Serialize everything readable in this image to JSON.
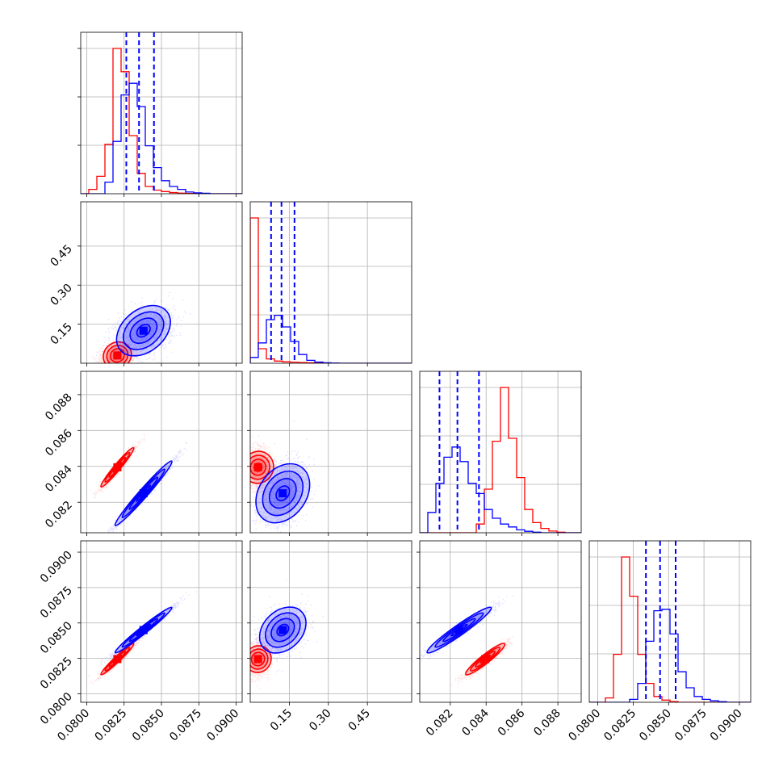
{
  "colors": {
    "series_red": "#ff0000",
    "series_blue": "#0000ff",
    "grid": "#b0b0b0",
    "axes": "#000000"
  },
  "chart_data": {
    "type": "corner",
    "grid": true,
    "parameters": [
      {
        "range": [
          0.0796,
          0.0904
        ],
        "ticks": [
          0.08,
          0.0825,
          0.085,
          0.0875,
          0.09
        ],
        "tick_labels": [
          "0.0800",
          "0.0825",
          "0.0850",
          "0.0875",
          "0.0900"
        ]
      },
      {
        "range": [
          0.0,
          0.62
        ],
        "ticks": [
          0.15,
          0.3,
          0.45
        ],
        "tick_labels": [
          "0.15",
          "0.30",
          "0.45"
        ]
      },
      {
        "range": [
          0.0803,
          0.0893
        ],
        "ticks": [
          0.082,
          0.084,
          0.086,
          0.088
        ],
        "tick_labels": [
          "0.082",
          "0.084",
          "0.086",
          "0.088"
        ]
      },
      {
        "range": [
          0.0794,
          0.0908
        ],
        "ticks": [
          0.08,
          0.0825,
          0.085,
          0.0875,
          0.09
        ],
        "tick_labels": [
          "0.0800",
          "0.0825",
          "0.0850",
          "0.0875",
          "0.0900"
        ]
      }
    ],
    "series": [
      {
        "color": "#ff0000",
        "quantiles": null,
        "histograms": [
          {
            "edges_range": [
              0.0796,
              0.0904
            ],
            "counts": [
              0,
              3,
              12,
              34,
              100,
              84,
              40,
              14,
              5,
              2.5,
              1.5,
              0.8,
              0.4,
              0.2,
              0,
              0,
              0,
              0,
              0,
              0
            ]
          },
          {
            "edges_range": [
              0.0,
              0.62
            ],
            "counts": [
              100,
              10,
              3,
              1.5,
              1,
              0.7,
              0.5,
              0.3,
              0.2,
              0.1,
              0,
              0,
              0,
              0,
              0,
              0,
              0,
              0,
              0,
              0
            ]
          },
          {
            "edges_range": [
              0.0803,
              0.0893
            ],
            "counts": [
              0,
              0,
              0,
              0,
              0,
              0,
              0,
              6,
              30,
              63,
              100,
              65,
              38,
              16,
              7,
              3,
              1.2,
              0.4,
              0,
              0
            ]
          },
          {
            "edges_range": [
              0.0794,
              0.0908
            ],
            "counts": [
              0,
              0,
              3,
              33,
              100,
              73,
              33,
              13,
              4,
              1.5,
              0.5,
              0,
              0,
              0,
              0,
              0,
              0,
              0,
              0,
              0
            ]
          }
        ],
        "mean": [
          0.08205,
          0.03,
          0.08395,
          0.08245
        ],
        "std": [
          0.00055,
          0.02,
          0.00055,
          0.00055
        ],
        "corr": [
          [
            1,
            0.1,
            0.97,
            0.97
          ],
          [
            0.1,
            1,
            0.05,
            0.05
          ],
          [
            0.97,
            0.05,
            1,
            0.94
          ],
          [
            0.97,
            0.05,
            0.94,
            1
          ]
        ]
      },
      {
        "color": "#0000ff",
        "quantiles": [
          [
            0.08265,
            0.0835,
            0.0845
          ],
          [
            0.08,
            0.12,
            0.17
          ],
          [
            0.0814,
            0.0824,
            0.0836
          ],
          [
            0.0834,
            0.0844,
            0.0855
          ]
        ],
        "histograms": [
          {
            "edges_range": [
              0.0796,
              0.0904
            ],
            "counts": [
              0,
              0,
              0,
              8,
              36,
              68,
              76,
              60,
              33,
              18,
              9,
              5,
              3,
              1.2,
              0.6,
              0.3,
              0,
              0,
              0,
              0
            ]
          },
          {
            "edges_range": [
              0.0,
              0.62
            ],
            "counts": [
              4,
              14,
              30,
              33,
              25,
              15,
              6,
              2,
              0.8,
              0.3,
              0.1,
              0,
              0,
              0,
              0,
              0,
              0,
              0,
              0,
              0
            ]
          },
          {
            "edges_range": [
              0.0803,
              0.0893
            ],
            "counts": [
              0,
              14,
              34,
              52,
              59,
              49,
              34,
              27,
              16,
              10,
              6,
              4,
              2,
              1,
              0.4,
              0,
              0,
              0,
              0,
              0
            ]
          },
          {
            "edges_range": [
              0.0794,
              0.0908
            ],
            "counts": [
              0,
              0,
              0,
              0,
              0,
              2,
              13,
              42,
              63,
              64,
              47,
              21,
              10,
              4,
              2,
              1,
              0.4,
              0,
              0,
              0
            ]
          }
        ],
        "mean": [
          0.0838,
          0.125,
          0.0825,
          0.0845
        ],
        "std": [
          0.00095,
          0.045,
          0.0009,
          0.0008
        ],
        "corr": [
          [
            1,
            0.35,
            0.985,
            0.985
          ],
          [
            0.35,
            1,
            0.3,
            0.3
          ],
          [
            0.985,
            0.3,
            1,
            0.965
          ],
          [
            0.985,
            0.3,
            0.965,
            1
          ]
        ]
      }
    ]
  }
}
